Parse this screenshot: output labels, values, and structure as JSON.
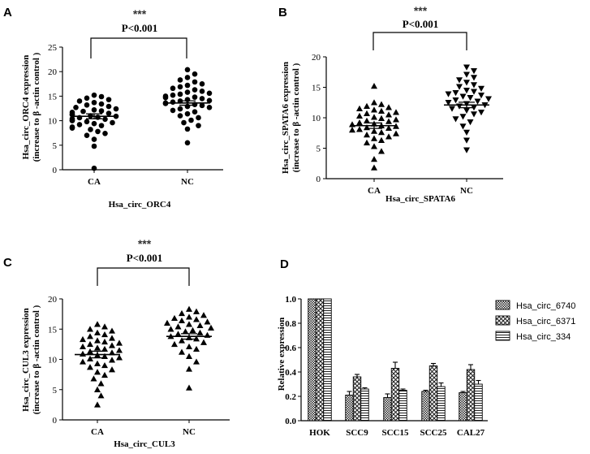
{
  "chart_data": [
    {
      "type": "scatter",
      "panel_label": "A",
      "stars": "***",
      "pvalue": "P<0.001",
      "xlabel": "Hsa_circ_ORC4",
      "ylabel_line1": "Hsa_circ_ORC4 expression",
      "ylabel_line2": "(increase to β -actin control )",
      "categories": [
        "CA",
        "NC"
      ],
      "ylim": [
        0,
        25
      ],
      "yticks": [
        "0",
        "5",
        "10",
        "15",
        "20",
        "25"
      ],
      "marker": "circle",
      "series": [
        {
          "name": "CA",
          "mean": 10.9,
          "sem": 0.5,
          "values": [
            0.3,
            4.8,
            6.2,
            7.0,
            7.4,
            7.8,
            8.2,
            8.5,
            8.7,
            9.0,
            9.2,
            9.4,
            9.6,
            9.8,
            10.0,
            10.1,
            10.3,
            10.4,
            10.6,
            10.7,
            10.9,
            11.0,
            11.2,
            11.3,
            11.5,
            11.7,
            11.9,
            12.0,
            12.2,
            12.4,
            12.7,
            12.9,
            13.2,
            13.4,
            13.7,
            14.0,
            14.3,
            14.6,
            14.9,
            15.2
          ]
        },
        {
          "name": "NC",
          "mean": 13.6,
          "sem": 0.45,
          "values": [
            5.5,
            8.3,
            9.0,
            9.6,
            10.1,
            10.6,
            11.0,
            11.4,
            11.8,
            12.1,
            12.4,
            12.7,
            12.9,
            13.1,
            13.3,
            13.5,
            13.6,
            13.8,
            14.0,
            14.1,
            14.3,
            14.5,
            14.7,
            14.8,
            15.0,
            15.2,
            15.4,
            15.6,
            15.8,
            16.0,
            16.3,
            16.6,
            16.9,
            17.2,
            17.5,
            17.9,
            18.3,
            18.8,
            19.5,
            20.4
          ]
        }
      ]
    },
    {
      "type": "scatter",
      "panel_label": "B",
      "stars": "***",
      "pvalue": "P<0.001",
      "xlabel": "Hsa_circ_SPATA6",
      "ylabel_line1": "Hsa_circ_SPATA6 expression",
      "ylabel_line2": "(increase to β -actin control )",
      "categories": [
        "CA",
        "NC"
      ],
      "ylim": [
        0,
        20
      ],
      "yticks": [
        "0",
        "5",
        "10",
        "15",
        "20"
      ],
      "marker": "triangle-down-ca-up",
      "series": [
        {
          "name": "CA",
          "mean": 8.7,
          "sem": 0.45,
          "values": [
            1.8,
            3.2,
            4.5,
            5.3,
            5.9,
            6.3,
            6.6,
            6.9,
            7.2,
            7.4,
            7.6,
            7.8,
            8.0,
            8.1,
            8.3,
            8.4,
            8.6,
            8.7,
            8.9,
            9.0,
            9.2,
            9.4,
            9.5,
            9.7,
            9.9,
            10.1,
            10.3,
            10.5,
            10.7,
            10.9,
            11.1,
            11.3,
            11.5,
            11.7,
            11.9,
            12.2,
            12.5,
            15.2
          ]
        },
        {
          "name": "NC",
          "mean": 12.1,
          "sem": 0.45,
          "values": [
            4.7,
            6.3,
            7.6,
            8.6,
            9.3,
            9.8,
            10.2,
            10.6,
            10.9,
            11.2,
            11.5,
            11.7,
            11.9,
            12.1,
            12.3,
            12.5,
            12.7,
            12.9,
            13.1,
            13.3,
            13.5,
            13.7,
            13.9,
            14.1,
            14.3,
            14.5,
            14.8,
            15.1,
            15.4,
            15.8,
            16.2,
            16.6,
            17.1,
            17.7,
            18.3
          ]
        }
      ]
    },
    {
      "type": "scatter",
      "panel_label": "C",
      "stars": "***",
      "pvalue": "P<0.001",
      "xlabel": "Hsa_circ_CUL3",
      "ylabel_line1": "Hsa_circ_CUL3 expression",
      "ylabel_line2": "(increase to β -actin control )",
      "categories": [
        "CA",
        "NC"
      ],
      "ylim": [
        0,
        20
      ],
      "yticks": [
        "0",
        "5",
        "10",
        "15",
        "20"
      ],
      "marker": "triangle-up",
      "series": [
        {
          "name": "CA",
          "mean": 10.8,
          "sem": 0.55,
          "values": [
            2.5,
            4.0,
            5.0,
            6.0,
            6.8,
            7.4,
            7.9,
            8.3,
            8.7,
            9.0,
            9.3,
            9.6,
            9.9,
            10.1,
            10.3,
            10.5,
            10.7,
            10.9,
            11.1,
            11.3,
            11.5,
            11.7,
            11.9,
            12.1,
            12.3,
            12.5,
            12.7,
            12.9,
            13.1,
            13.3,
            13.5,
            13.8,
            14.1,
            14.4,
            14.7,
            15.0,
            15.4,
            15.8
          ]
        },
        {
          "name": "NC",
          "mean": 13.8,
          "sem": 0.45,
          "values": [
            5.3,
            8.4,
            9.6,
            10.5,
            11.2,
            11.7,
            12.1,
            12.5,
            12.8,
            13.1,
            13.4,
            13.6,
            13.8,
            14.0,
            14.2,
            14.4,
            14.6,
            14.8,
            15.0,
            15.2,
            15.4,
            15.6,
            15.8,
            16.0,
            16.2,
            16.4,
            16.6,
            16.8,
            17.0,
            17.3,
            17.6,
            17.9,
            18.3
          ]
        }
      ]
    },
    {
      "type": "bar",
      "panel_label": "D",
      "title": "",
      "xlabel": "",
      "ylabel": "Relative expression",
      "ylim": [
        0,
        1.0
      ],
      "yticks": [
        "0.0",
        "0.2",
        "0.4",
        "0.6",
        "0.8",
        "1.0"
      ],
      "categories": [
        "HOK",
        "SCC9",
        "SCC15",
        "SCC25",
        "CAL27"
      ],
      "legend_position": "right",
      "series": [
        {
          "name": "Hsa_circ_6740",
          "values": [
            1.0,
            0.21,
            0.19,
            0.24,
            0.23
          ],
          "errors": [
            0.0,
            0.03,
            0.03,
            0.01,
            0.01
          ]
        },
        {
          "name": "Hsa_circ_6371",
          "values": [
            1.0,
            0.36,
            0.43,
            0.45,
            0.42
          ],
          "errors": [
            0.0,
            0.02,
            0.05,
            0.02,
            0.04
          ]
        },
        {
          "name": "Hsa_circ_334",
          "values": [
            1.0,
            0.26,
            0.25,
            0.28,
            0.3
          ],
          "errors": [
            0.0,
            0.01,
            0.01,
            0.03,
            0.03
          ]
        }
      ]
    }
  ]
}
